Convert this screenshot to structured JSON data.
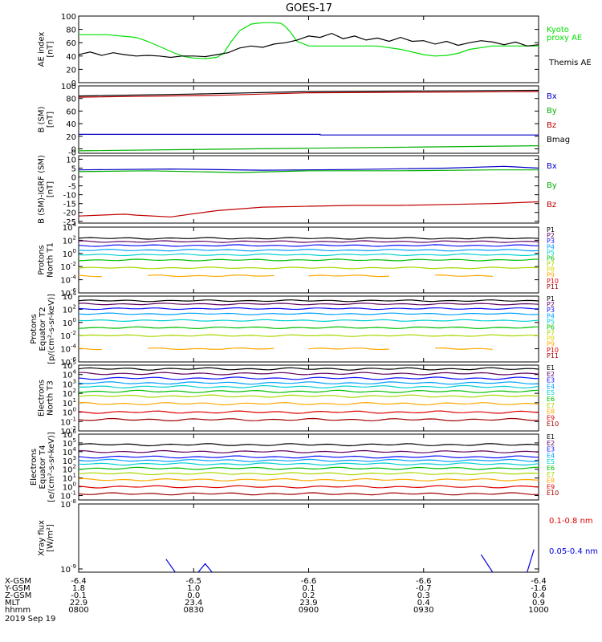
{
  "title": "GOES-17",
  "chart_data": [
    {
      "type": "line",
      "id": "ae",
      "ylabel": [
        "AE index",
        "[nT]"
      ],
      "ylim": [
        0,
        100
      ],
      "yticks": [
        0,
        20,
        40,
        60,
        80,
        100
      ],
      "ytick_labels": [
        "0",
        "20",
        "40",
        "60",
        "80",
        "100"
      ],
      "series": [
        {
          "name": "Kyoto proxy AE",
          "label_lines": [
            "Kyoto",
            "proxy AE"
          ],
          "color": "#00e000",
          "x": [
            0,
            0.12,
            0.25,
            0.3,
            0.34,
            0.38,
            0.42,
            0.46,
            0.5,
            0.55,
            0.6,
            0.63,
            0.66,
            0.7,
            0.75,
            0.8,
            0.85,
            0.88,
            0.9,
            0.92,
            0.95,
            1.0,
            1.1,
            1.2,
            1.3,
            1.4,
            1.5,
            1.55,
            1.6,
            1.65,
            1.7,
            1.8,
            1.9,
            2.0
          ],
          "y": [
            72,
            72,
            68,
            62,
            56,
            50,
            44,
            39,
            37,
            36,
            38,
            44,
            60,
            78,
            88,
            90,
            90,
            89,
            84,
            76,
            62,
            55,
            55,
            55,
            55,
            50,
            42,
            40,
            41,
            44,
            50,
            55,
            55,
            55
          ]
        },
        {
          "name": "Themis AE",
          "label_lines": [
            "Themis AE"
          ],
          "color": "#000000",
          "x": [
            0,
            0.05,
            0.1,
            0.15,
            0.2,
            0.25,
            0.3,
            0.35,
            0.4,
            0.45,
            0.5,
            0.55,
            0.6,
            0.65,
            0.7,
            0.75,
            0.8,
            0.85,
            0.9,
            0.95,
            1.0,
            1.05,
            1.1,
            1.15,
            1.2,
            1.25,
            1.3,
            1.35,
            1.4,
            1.45,
            1.5,
            1.55,
            1.6,
            1.65,
            1.7,
            1.75,
            1.8,
            1.85,
            1.9,
            1.95,
            2.0
          ],
          "y": [
            42,
            46,
            41,
            45,
            42,
            40,
            41,
            40,
            38,
            40,
            40,
            39,
            42,
            45,
            52,
            55,
            53,
            58,
            60,
            64,
            70,
            68,
            74,
            66,
            70,
            64,
            67,
            62,
            68,
            62,
            63,
            58,
            62,
            56,
            60,
            63,
            61,
            57,
            61,
            55,
            57
          ]
        }
      ]
    },
    {
      "type": "line",
      "id": "bsm",
      "ylabel": [
        "B (SM)",
        "[nT]"
      ],
      "ylim": [
        -7,
        100
      ],
      "yticks": [
        0,
        20,
        40,
        60,
        80,
        100
      ],
      "ytick_labels": [
        "0",
        "20",
        "40",
        "60",
        "80",
        "100"
      ],
      "extra_ticks": [
        {
          "label": "-0",
          "value": -5
        }
      ],
      "series": [
        {
          "name": "Bx",
          "color": "#0000c8",
          "x": [
            0,
            1.05,
            1.05,
            2.0
          ],
          "y": [
            23,
            23,
            22,
            22
          ]
        },
        {
          "name": "By",
          "color": "#00b000",
          "x": [
            0,
            1.0,
            2.0
          ],
          "y": [
            -3,
            1,
            5
          ]
        },
        {
          "name": "Bz",
          "color": "#c00000",
          "x": [
            0,
            0.6,
            1.0,
            1.5,
            2.0
          ],
          "y": [
            82,
            85,
            89,
            90,
            91
          ]
        },
        {
          "name": "Bmag",
          "color": "#000000",
          "x": [
            0,
            0.5,
            1.0,
            1.5,
            2.0
          ],
          "y": [
            84,
            87,
            91,
            92,
            93
          ]
        }
      ]
    },
    {
      "type": "line",
      "id": "bigrf",
      "ylabel": [
        "B (SM)-IGRF (SM)",
        "[nT]"
      ],
      "ylim": [
        -26,
        12
      ],
      "yticks": [
        -25,
        -20,
        -15,
        -10,
        -5,
        0,
        5,
        10
      ],
      "ytick_labels": [
        "-25",
        "-20",
        "-15",
        "-10",
        "-5",
        "0",
        "5",
        "10"
      ],
      "series": [
        {
          "name": "Bx",
          "color": "#0000c8",
          "x": [
            0,
            0.4,
            0.8,
            1.2,
            1.6,
            1.85,
            2.0
          ],
          "y": [
            4,
            4.5,
            3.8,
            4.2,
            5,
            6,
            5
          ]
        },
        {
          "name": "By",
          "color": "#00b000",
          "x": [
            0,
            0.3,
            0.7,
            1.0,
            1.4,
            1.8,
            2.0
          ],
          "y": [
            3,
            3.5,
            2.5,
            3.5,
            3.5,
            4,
            4
          ]
        },
        {
          "name": "Bz",
          "color": "#c00000",
          "x": [
            0,
            0.2,
            0.25,
            0.4,
            0.6,
            0.8,
            1.0,
            1.2,
            1.4,
            1.6,
            1.8,
            2.0
          ],
          "y": [
            -22,
            -21,
            -21.5,
            -22.5,
            -19,
            -17,
            -16.5,
            -16,
            -16,
            -15.5,
            -15,
            -14
          ]
        }
      ]
    },
    {
      "type": "line",
      "id": "protonsT1",
      "ylabel": [
        "Protons",
        "North T1"
      ],
      "log": true,
      "ylim": [
        -6,
        4
      ],
      "yticks": [
        4,
        2,
        0,
        -2,
        -4,
        -6
      ],
      "ytick_labels": [
        "10^4",
        "10^2",
        "10^0",
        "10^-2",
        "10^-4",
        "10^-6"
      ],
      "series": [
        {
          "name": "P1",
          "color": "#000000",
          "level": 2.3
        },
        {
          "name": "P2",
          "color": "#600060",
          "level": 1.8
        },
        {
          "name": "P3",
          "color": "#1010ff",
          "level": 1.2
        },
        {
          "name": "P4",
          "color": "#00a0ff",
          "level": 0.5
        },
        {
          "name": "P5",
          "color": "#00d0d0",
          "level": -0.2
        },
        {
          "name": "P6",
          "color": "#00c000",
          "level": -1.0
        },
        {
          "name": "P7",
          "color": "#a8d800",
          "level": -2.2
        },
        {
          "name": "P8",
          "color": "#d8d800",
          "level": -9
        },
        {
          "name": "P9",
          "color": "#ffa800",
          "level": -3.4,
          "gaps": true
        },
        {
          "name": "P10",
          "color": "#e00000",
          "level": -9
        },
        {
          "name": "P11",
          "color": "#a00000",
          "level": -9
        }
      ]
    },
    {
      "type": "line",
      "id": "protonsT2",
      "ylabel": [
        "Protons",
        "Equator T2",
        "[p/(cm²-s-sr-keV)]"
      ],
      "log": true,
      "ylim": [
        -6,
        4
      ],
      "yticks": [
        4,
        2,
        0,
        -2,
        -4,
        -6
      ],
      "ytick_labels": [
        "10^4",
        "10^2",
        "10^0",
        "10^-2",
        "10^-4",
        "10^-6"
      ],
      "series": [
        {
          "name": "P1",
          "color": "#000000",
          "level": 3.3
        },
        {
          "name": "P2",
          "color": "#600060",
          "level": 2.8
        },
        {
          "name": "P3",
          "color": "#1010ff",
          "level": 2.1
        },
        {
          "name": "P4",
          "color": "#00a0ff",
          "level": 1.3
        },
        {
          "name": "P5",
          "color": "#00d0d0",
          "level": 0.3
        },
        {
          "name": "P6",
          "color": "#00c000",
          "level": -0.8
        },
        {
          "name": "P7",
          "color": "#a8d800",
          "level": -2.0
        },
        {
          "name": "P8",
          "color": "#d8d800",
          "level": -9
        },
        {
          "name": "P9",
          "color": "#ffa800",
          "level": -4.0,
          "gaps": true
        },
        {
          "name": "P10",
          "color": "#e00000",
          "level": -9
        },
        {
          "name": "P11",
          "color": "#a00000",
          "level": -9
        }
      ]
    },
    {
      "type": "line",
      "id": "electronsT3",
      "ylabel": [
        "Electrons",
        "North T3"
      ],
      "log": true,
      "ylim": [
        -2,
        5
      ],
      "yticks": [
        5,
        4,
        3,
        2,
        1,
        0,
        -1,
        -2
      ],
      "ytick_labels": [
        "10^5",
        "10^4",
        "10^3",
        "10^2",
        "10^1",
        "10^0",
        "10^-1",
        "10^-2"
      ],
      "series": [
        {
          "name": "E1",
          "color": "#000000",
          "level": 4.6
        },
        {
          "name": "E2",
          "color": "#600060",
          "level": 4.1
        },
        {
          "name": "E3",
          "color": "#1010ff",
          "level": 3.6
        },
        {
          "name": "E4",
          "color": "#00a0ff",
          "level": 3.1
        },
        {
          "name": "E5",
          "color": "#00d0d0",
          "level": 2.7
        },
        {
          "name": "E6",
          "color": "#00c000",
          "level": 2.2
        },
        {
          "name": "E7",
          "color": "#a8d800",
          "level": 1.7
        },
        {
          "name": "E8",
          "color": "#ffa800",
          "level": 0.9
        },
        {
          "name": "E9",
          "color": "#e00000",
          "level": 0.0
        },
        {
          "name": "E10",
          "color": "#a00000",
          "level": -0.8
        }
      ]
    },
    {
      "type": "line",
      "id": "electronsT4",
      "ylabel": [
        "Electrons",
        "Equator T4",
        "[e/(cm²-s-sr-keV)]"
      ],
      "log": true,
      "ylim": [
        -1.5,
        6
      ],
      "yticks": [
        6,
        5,
        4,
        3,
        2,
        1,
        0,
        -1
      ],
      "ytick_labels": [
        "10^6",
        "10^5",
        "10^4",
        "10^3",
        "10^2",
        "10^1",
        "10^0",
        "10^-1"
      ],
      "series": [
        {
          "name": "E1",
          "color": "#000000",
          "level": 4.8
        },
        {
          "name": "E2",
          "color": "#600060",
          "level": 4.0
        },
        {
          "name": "E3",
          "color": "#1010ff",
          "level": 3.4
        },
        {
          "name": "E4",
          "color": "#00a0ff",
          "level": 3.0
        },
        {
          "name": "E5",
          "color": "#00d0d0",
          "level": 2.6
        },
        {
          "name": "E6",
          "color": "#00c000",
          "level": 2.1
        },
        {
          "name": "E7",
          "color": "#a8d800",
          "level": 1.5
        },
        {
          "name": "E8",
          "color": "#ffa800",
          "level": 0.8
        },
        {
          "name": "E9",
          "color": "#e00000",
          "level": 0.0
        },
        {
          "name": "E10",
          "color": "#a00000",
          "level": -0.8
        }
      ]
    },
    {
      "type": "line",
      "id": "xray",
      "ylabel": [
        "Xray flux",
        "[W/m²]"
      ],
      "log": true,
      "ylim": [
        -9.05,
        -8
      ],
      "yticks": [
        -8,
        -9
      ],
      "ytick_labels": [
        "10^-8",
        "10^-9"
      ],
      "series": [
        {
          "name": "0.1-0.8 nm",
          "color": "#e00000",
          "x": [],
          "y": []
        },
        {
          "name": "0.05-0.4 nm",
          "color": "#0000e0",
          "segments": [
            {
              "x": [
                0.38,
                0.42
              ],
              "y": [
                -8.85,
                -9.05
              ]
            },
            {
              "x": [
                0.52,
                0.55,
                0.58
              ],
              "y": [
                -9.05,
                -8.92,
                -9.05
              ]
            },
            {
              "x": [
                1.75,
                1.8
              ],
              "y": [
                -8.78,
                -9.05
              ]
            },
            {
              "x": [
                1.95,
                1.98
              ],
              "y": [
                -9.05,
                -8.7
              ]
            }
          ]
        }
      ]
    }
  ],
  "x_axis": {
    "xlim": [
      0,
      2
    ],
    "tick_positions": [
      0,
      0.5,
      1,
      1.5,
      2
    ],
    "row_labels": [
      "X-GSM",
      "Y-GSM",
      "Z-GSM",
      "MLT",
      "hhmm"
    ],
    "rows": [
      [
        "-6.4",
        "-6.5",
        "-6.6",
        "-6.6",
        "-6.4"
      ],
      [
        "1.8",
        "1.0",
        "0.1",
        "-0.7",
        "-1.6"
      ],
      [
        "-0.1",
        "0.0",
        "0.2",
        "0.3",
        "0.4"
      ],
      [
        "22.9",
        "23.4",
        "23.9",
        "0.4",
        "0.9"
      ],
      [
        "0800",
        "0830",
        "0900",
        "0930",
        "1000"
      ]
    ],
    "date": "2019 Sep 19"
  }
}
